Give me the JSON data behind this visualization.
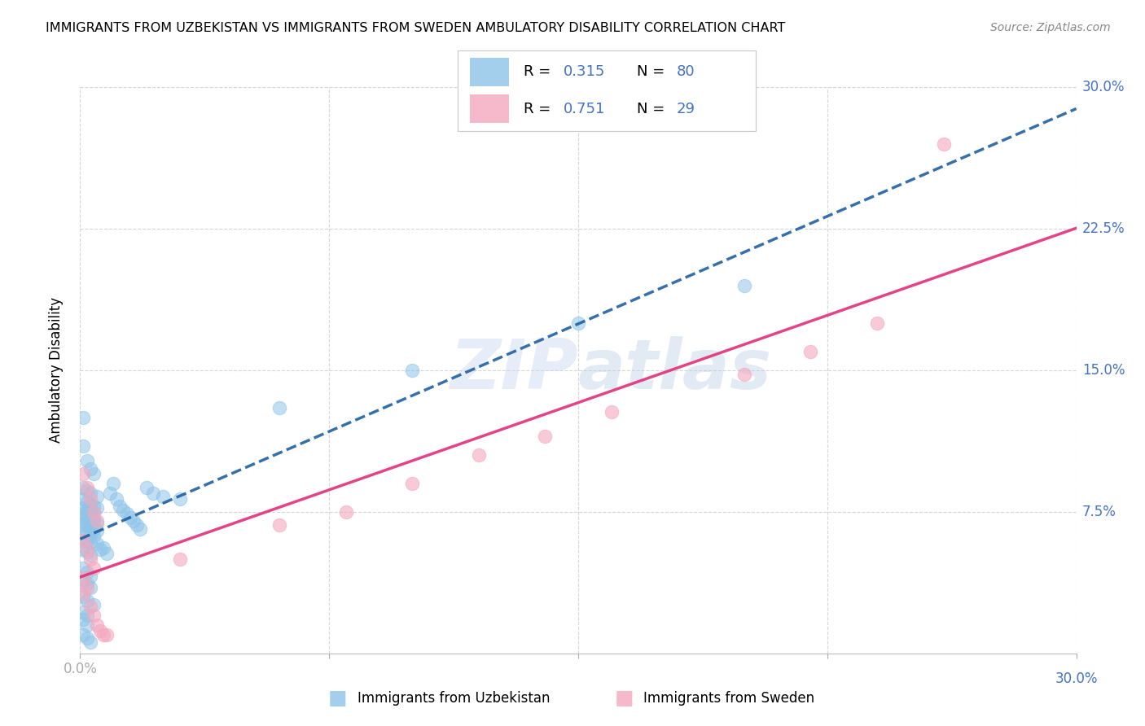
{
  "title": "IMMIGRANTS FROM UZBEKISTAN VS IMMIGRANTS FROM SWEDEN AMBULATORY DISABILITY CORRELATION CHART",
  "source": "Source: ZipAtlas.com",
  "ylabel": "Ambulatory Disability",
  "R1": 0.315,
  "N1": 80,
  "R2": 0.751,
  "N2": 29,
  "color_uz": "#8ec4e8",
  "color_sw": "#f4a8be",
  "line_color_uz": "#2060a0",
  "line_color_sw": "#e0307a",
  "xlim": [
    0.0,
    0.3
  ],
  "ylim": [
    0.0,
    0.3
  ],
  "watermark_zip": "ZIP",
  "watermark_atlas": "atlas",
  "label1": "Immigrants from Uzbekistan",
  "label2": "Immigrants from Sweden",
  "uz_points": [
    [
      0.001,
      0.11
    ],
    [
      0.002,
      0.102
    ],
    [
      0.003,
      0.098
    ],
    [
      0.004,
      0.095
    ],
    [
      0.001,
      0.088
    ],
    [
      0.002,
      0.086
    ],
    [
      0.003,
      0.085
    ],
    [
      0.005,
      0.083
    ],
    [
      0.001,
      0.082
    ],
    [
      0.002,
      0.08
    ],
    [
      0.003,
      0.079
    ],
    [
      0.004,
      0.078
    ],
    [
      0.005,
      0.077
    ],
    [
      0.001,
      0.077
    ],
    [
      0.002,
      0.076
    ],
    [
      0.003,
      0.076
    ],
    [
      0.004,
      0.075
    ],
    [
      0.001,
      0.074
    ],
    [
      0.002,
      0.074
    ],
    [
      0.003,
      0.073
    ],
    [
      0.004,
      0.072
    ],
    [
      0.001,
      0.072
    ],
    [
      0.002,
      0.071
    ],
    [
      0.003,
      0.07
    ],
    [
      0.004,
      0.07
    ],
    [
      0.005,
      0.069
    ],
    [
      0.001,
      0.068
    ],
    [
      0.002,
      0.068
    ],
    [
      0.003,
      0.067
    ],
    [
      0.004,
      0.066
    ],
    [
      0.005,
      0.065
    ],
    [
      0.001,
      0.065
    ],
    [
      0.002,
      0.064
    ],
    [
      0.003,
      0.063
    ],
    [
      0.004,
      0.062
    ],
    [
      0.001,
      0.06
    ],
    [
      0.002,
      0.06
    ],
    [
      0.003,
      0.059
    ],
    [
      0.005,
      0.058
    ],
    [
      0.001,
      0.055
    ],
    [
      0.002,
      0.054
    ],
    [
      0.003,
      0.052
    ],
    [
      0.006,
      0.055
    ],
    [
      0.007,
      0.056
    ],
    [
      0.008,
      0.053
    ],
    [
      0.009,
      0.085
    ],
    [
      0.01,
      0.09
    ],
    [
      0.011,
      0.082
    ],
    [
      0.012,
      0.078
    ],
    [
      0.013,
      0.076
    ],
    [
      0.014,
      0.074
    ],
    [
      0.015,
      0.072
    ],
    [
      0.016,
      0.07
    ],
    [
      0.017,
      0.068
    ],
    [
      0.018,
      0.066
    ],
    [
      0.02,
      0.088
    ],
    [
      0.022,
      0.085
    ],
    [
      0.025,
      0.083
    ],
    [
      0.03,
      0.082
    ],
    [
      0.001,
      0.045
    ],
    [
      0.002,
      0.043
    ],
    [
      0.003,
      0.041
    ],
    [
      0.001,
      0.038
    ],
    [
      0.002,
      0.037
    ],
    [
      0.003,
      0.035
    ],
    [
      0.001,
      0.03
    ],
    [
      0.002,
      0.028
    ],
    [
      0.004,
      0.026
    ],
    [
      0.001,
      0.022
    ],
    [
      0.002,
      0.02
    ],
    [
      0.001,
      0.018
    ],
    [
      0.002,
      0.015
    ],
    [
      0.001,
      0.01
    ],
    [
      0.002,
      0.008
    ],
    [
      0.003,
      0.006
    ],
    [
      0.06,
      0.13
    ],
    [
      0.1,
      0.15
    ],
    [
      0.15,
      0.175
    ],
    [
      0.2,
      0.195
    ],
    [
      0.001,
      0.125
    ]
  ],
  "sw_points": [
    [
      0.001,
      0.095
    ],
    [
      0.002,
      0.088
    ],
    [
      0.003,
      0.082
    ],
    [
      0.004,
      0.075
    ],
    [
      0.005,
      0.07
    ],
    [
      0.001,
      0.06
    ],
    [
      0.002,
      0.055
    ],
    [
      0.003,
      0.05
    ],
    [
      0.004,
      0.045
    ],
    [
      0.001,
      0.04
    ],
    [
      0.002,
      0.035
    ],
    [
      0.003,
      0.025
    ],
    [
      0.004,
      0.02
    ],
    [
      0.005,
      0.015
    ],
    [
      0.006,
      0.012
    ],
    [
      0.007,
      0.01
    ],
    [
      0.008,
      0.01
    ],
    [
      0.03,
      0.05
    ],
    [
      0.06,
      0.068
    ],
    [
      0.08,
      0.075
    ],
    [
      0.1,
      0.09
    ],
    [
      0.12,
      0.105
    ],
    [
      0.14,
      0.115
    ],
    [
      0.16,
      0.128
    ],
    [
      0.2,
      0.148
    ],
    [
      0.22,
      0.16
    ],
    [
      0.24,
      0.175
    ],
    [
      0.26,
      0.27
    ],
    [
      0.001,
      0.032
    ]
  ]
}
